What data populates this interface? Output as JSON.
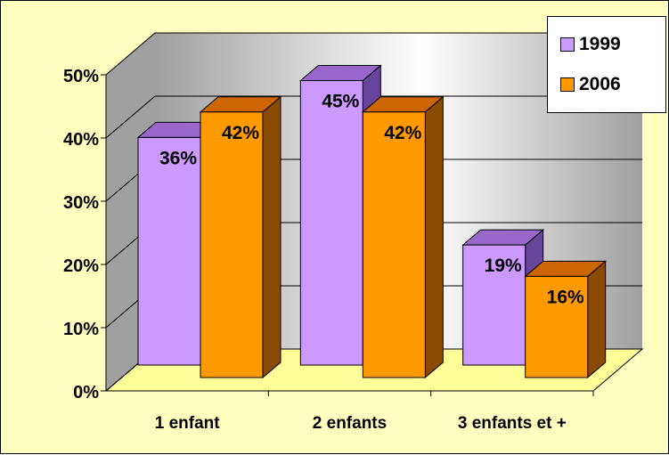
{
  "chart_data": {
    "type": "bar",
    "categories": [
      "1 enfant",
      "2 enfants",
      "3 enfants et +"
    ],
    "series": [
      {
        "name": "1999",
        "values": [
          36,
          45,
          19
        ],
        "labels": [
          "36%",
          "45%",
          "19%"
        ],
        "color": "#cc99ff",
        "top_color": "#9966cc",
        "side_color": "#664499"
      },
      {
        "name": "2006",
        "values": [
          42,
          42,
          16
        ],
        "labels": [
          "42%",
          "42%",
          "16%"
        ],
        "color": "#ff9900",
        "top_color": "#cc6600",
        "side_color": "#8a4a00"
      }
    ],
    "yticks": [
      "0%",
      "10%",
      "20%",
      "30%",
      "40%",
      "50%"
    ],
    "ylim": [
      0,
      50
    ],
    "grid": true,
    "legend_position": "top-right",
    "title": "",
    "xlabel": "",
    "ylabel": ""
  },
  "colors": {
    "chart_background": "#ffffc0",
    "floor": "#ffff99",
    "wall_light": "#ffffff",
    "wall_dark": "#a0a0a0",
    "gridline": "#000000"
  }
}
